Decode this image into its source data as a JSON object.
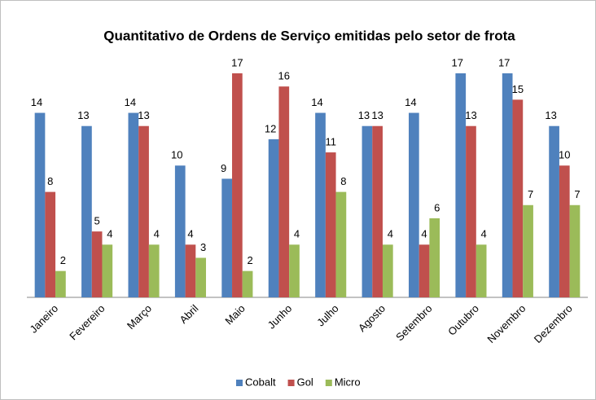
{
  "chart_data": {
    "type": "bar",
    "title": "Quantitativo de Ordens de Serviço emitidas pelo setor de frota",
    "categories": [
      "Janeiro",
      "Fevereiro",
      "Março",
      "Abril",
      "Maio",
      "Junho",
      "Julho",
      "Agosto",
      "Setembro",
      "Outubro",
      "Novembro",
      "Dezembro"
    ],
    "series": [
      {
        "name": "Cobalt",
        "color": "#4f81bd",
        "values": [
          14,
          13,
          14,
          10,
          9,
          12,
          14,
          13,
          14,
          17,
          17,
          13
        ]
      },
      {
        "name": "Gol",
        "color": "#c0504d",
        "values": [
          8,
          5,
          13,
          4,
          17,
          16,
          11,
          13,
          4,
          13,
          15,
          10
        ]
      },
      {
        "name": "Micro",
        "color": "#9bbb59",
        "values": [
          2,
          4,
          4,
          3,
          2,
          4,
          8,
          4,
          6,
          4,
          7,
          7
        ]
      }
    ],
    "legend": "bottom"
  }
}
